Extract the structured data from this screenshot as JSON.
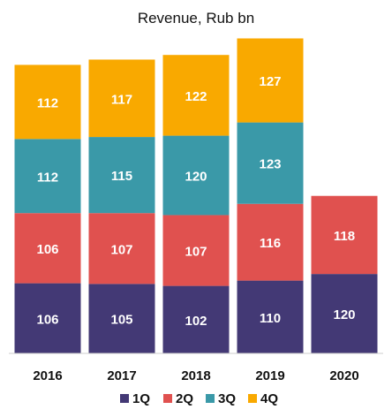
{
  "chart_data": {
    "type": "bar",
    "stacked": true,
    "title": "Revenue, Rub bn",
    "categories": [
      "2016",
      "2017",
      "2018",
      "2019",
      "2020"
    ],
    "series": [
      {
        "name": "1Q",
        "color": "#433975",
        "values": [
          106,
          105,
          102,
          110,
          120
        ]
      },
      {
        "name": "2Q",
        "color": "#e0514f",
        "values": [
          106,
          107,
          107,
          116,
          118
        ]
      },
      {
        "name": "3Q",
        "color": "#3a99a8",
        "values": [
          112,
          115,
          120,
          123,
          null
        ]
      },
      {
        "name": "4Q",
        "color": "#f9a900",
        "values": [
          112,
          117,
          122,
          127,
          null
        ]
      }
    ],
    "legend": "bottom",
    "grid": false,
    "ylim": [
      0,
      500
    ]
  }
}
